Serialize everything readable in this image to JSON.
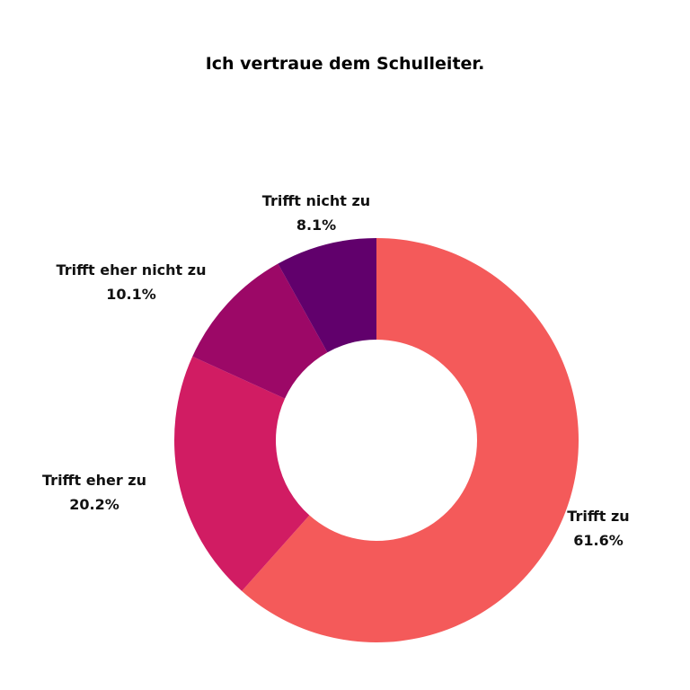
{
  "chart_data": {
    "type": "pie",
    "title": "Ich vertraue dem Schulleiter.",
    "donut": true,
    "slices": [
      {
        "label": "Trifft zu",
        "value": 61.6,
        "value_text": "61.6%",
        "color": "#f45a5a"
      },
      {
        "label": "Trifft eher zu",
        "value": 20.2,
        "value_text": "20.2%",
        "color": "#d11c63"
      },
      {
        "label": "Trifft eher nicht zu",
        "value": 10.1,
        "value_text": "10.1%",
        "color": "#9c0867"
      },
      {
        "label": "Trifft nicht zu",
        "value": 8.1,
        "value_text": "8.1%",
        "color": "#61006c"
      }
    ],
    "start": "12 o'clock",
    "direction": "clockwise"
  }
}
